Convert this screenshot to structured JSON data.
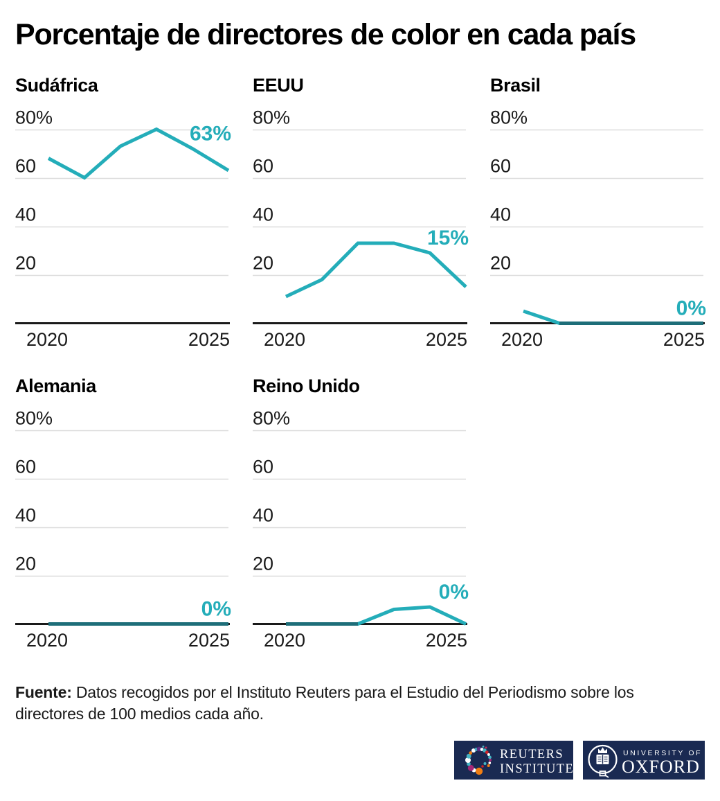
{
  "page": {
    "title": "Porcentaje de directores de color en cada país"
  },
  "colors": {
    "accent": "#24adb9",
    "accent_dark": "#1d6e79",
    "gridline": "#dcdcdc",
    "axis": "#1a1a1a",
    "tick_text": "#1a1a1a",
    "logo_navy": "#1a2a52"
  },
  "chart_data": {
    "type": "line",
    "layout": "small_multiples",
    "title": "Porcentaje de directores de color en cada país",
    "x": [
      2020,
      2021,
      2022,
      2023,
      2024,
      2025
    ],
    "x_axis_labels": [
      "2020",
      "2025"
    ],
    "ylim": [
      0,
      80
    ],
    "grid": true,
    "yticks": [
      {
        "value": 20,
        "label": "20"
      },
      {
        "value": 40,
        "label": "40"
      },
      {
        "value": 60,
        "label": "60"
      },
      {
        "value": 80,
        "label": "80%"
      }
    ],
    "series": [
      {
        "name": "Sudáfrica",
        "values": [
          68,
          60,
          73,
          80,
          72,
          63
        ],
        "end_label": "63%"
      },
      {
        "name": "EEUU",
        "values": [
          11,
          18,
          33,
          33,
          29,
          15
        ],
        "end_label": "15%"
      },
      {
        "name": "Brasil",
        "values": [
          5,
          0,
          0,
          0,
          0,
          0
        ],
        "end_label": "0%"
      },
      {
        "name": "Alemania",
        "values": [
          0,
          0,
          0,
          0,
          0,
          0
        ],
        "end_label": "0%"
      },
      {
        "name": "Reino Unido",
        "values": [
          0,
          0,
          0,
          6,
          7,
          0
        ],
        "end_label": "0%"
      }
    ]
  },
  "source": {
    "label": "Fuente:",
    "text": "Datos recogidos por el Instituto Reuters para el Estudio del Periodismo sobre los directores de 100 medios cada año."
  },
  "logos": {
    "reuters": {
      "line1": "REUTERS",
      "line2": "INSTITUTE"
    },
    "oxford": {
      "line1": "UNIVERSITY OF",
      "line2": "OXFORD"
    }
  }
}
